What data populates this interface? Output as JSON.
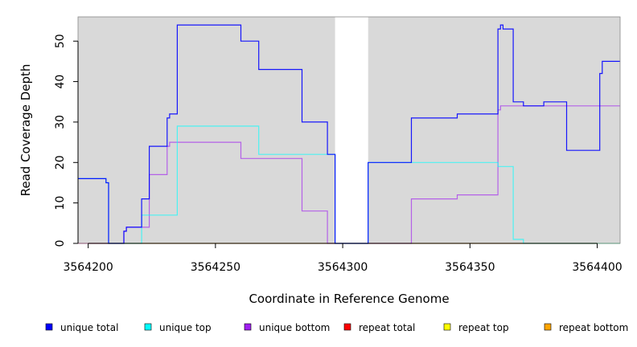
{
  "chart_data": {
    "type": "line",
    "title": "",
    "xlabel": "Coordinate in Reference Genome",
    "ylabel": "Read Coverage Depth",
    "xlim": [
      3564196,
      3564409
    ],
    "ylim": [
      0,
      56
    ],
    "x_ticks": [
      3564200,
      3564250,
      3564300,
      3564350,
      3564400
    ],
    "y_ticks": [
      0,
      10,
      20,
      30,
      40,
      50
    ],
    "grid": false,
    "background_color": "#d9d9d9",
    "gap_region": [
      3564297,
      3564310
    ],
    "legend_position": "bottom",
    "legend": [
      {
        "label": "unique total",
        "color": "#0000ff"
      },
      {
        "label": "unique top",
        "color": "#00ffff"
      },
      {
        "label": "unique bottom",
        "color": "#a020f0"
      },
      {
        "label": "repeat total",
        "color": "#ff0000"
      },
      {
        "label": "repeat top",
        "color": "#ffff00"
      },
      {
        "label": "repeat bottom",
        "color": "#ffa500"
      }
    ],
    "series": [
      {
        "name": "unique total",
        "color": "#0000ff",
        "points": [
          [
            3564196,
            16
          ],
          [
            3564207,
            16
          ],
          [
            3564207,
            15
          ],
          [
            3564208,
            15
          ],
          [
            3564208,
            0
          ],
          [
            3564214,
            0
          ],
          [
            3564214,
            3
          ],
          [
            3564215,
            3
          ],
          [
            3564215,
            4
          ],
          [
            3564221,
            4
          ],
          [
            3564221,
            11
          ],
          [
            3564224,
            11
          ],
          [
            3564224,
            24
          ],
          [
            3564231,
            24
          ],
          [
            3564231,
            31
          ],
          [
            3564232,
            31
          ],
          [
            3564232,
            32
          ],
          [
            3564235,
            32
          ],
          [
            3564235,
            54
          ],
          [
            3564260,
            54
          ],
          [
            3564260,
            50
          ],
          [
            3564267,
            50
          ],
          [
            3564267,
            43
          ],
          [
            3564284,
            43
          ],
          [
            3564284,
            30
          ],
          [
            3564294,
            30
          ],
          [
            3564294,
            22
          ],
          [
            3564297,
            22
          ],
          [
            3564297,
            21
          ],
          [
            3564297,
            0
          ],
          [
            3564310,
            0
          ],
          [
            3564310,
            20
          ],
          [
            3564327,
            20
          ],
          [
            3564327,
            31
          ],
          [
            3564345,
            31
          ],
          [
            3564345,
            32
          ],
          [
            3564361,
            32
          ],
          [
            3564361,
            53
          ],
          [
            3564362,
            53
          ],
          [
            3564362,
            54
          ],
          [
            3564363,
            54
          ],
          [
            3564363,
            53
          ],
          [
            3564367,
            53
          ],
          [
            3564367,
            35
          ],
          [
            3564371,
            35
          ],
          [
            3564371,
            34
          ],
          [
            3564379,
            34
          ],
          [
            3564379,
            35
          ],
          [
            3564388,
            35
          ],
          [
            3564388,
            23
          ],
          [
            3564401,
            23
          ],
          [
            3564401,
            42
          ],
          [
            3564402,
            42
          ],
          [
            3564402,
            45
          ],
          [
            3564409,
            45
          ]
        ]
      },
      {
        "name": "unique top",
        "color": "#00ffff",
        "points": [
          [
            3564196,
            16
          ],
          [
            3564207,
            16
          ],
          [
            3564207,
            15
          ],
          [
            3564208,
            15
          ],
          [
            3564208,
            0
          ],
          [
            3564221,
            0
          ],
          [
            3564221,
            7
          ],
          [
            3564235,
            7
          ],
          [
            3564235,
            29
          ],
          [
            3564267,
            29
          ],
          [
            3564267,
            22
          ],
          [
            3564297,
            22
          ],
          [
            3564297,
            21
          ],
          [
            3564297,
            0
          ],
          [
            3564310,
            0
          ],
          [
            3564310,
            20
          ],
          [
            3564361,
            20
          ],
          [
            3564361,
            19
          ],
          [
            3564367,
            19
          ],
          [
            3564367,
            1
          ],
          [
            3564371,
            1
          ],
          [
            3564371,
            0
          ],
          [
            3564409,
            0
          ]
        ]
      },
      {
        "name": "unique bottom",
        "color": "#a020f0",
        "points": [
          [
            3564196,
            0
          ],
          [
            3564214,
            0
          ],
          [
            3564214,
            3
          ],
          [
            3564215,
            3
          ],
          [
            3564215,
            4
          ],
          [
            3564224,
            4
          ],
          [
            3564224,
            17
          ],
          [
            3564231,
            17
          ],
          [
            3564231,
            24
          ],
          [
            3564232,
            24
          ],
          [
            3564232,
            25
          ],
          [
            3564260,
            25
          ],
          [
            3564260,
            21
          ],
          [
            3564284,
            21
          ],
          [
            3564284,
            8
          ],
          [
            3564294,
            8
          ],
          [
            3564294,
            0
          ],
          [
            3564327,
            0
          ],
          [
            3564327,
            11
          ],
          [
            3564345,
            11
          ],
          [
            3564345,
            12
          ],
          [
            3564361,
            12
          ],
          [
            3564361,
            33
          ],
          [
            3564362,
            33
          ],
          [
            3564362,
            34
          ],
          [
            3564371,
            34
          ],
          [
            3564371,
            34
          ],
          [
            3564409,
            34
          ]
        ]
      },
      {
        "name": "repeat bottom",
        "color": "#ffa500",
        "points": [
          [
            3564196,
            0
          ],
          [
            3564409,
            0
          ]
        ]
      }
    ]
  }
}
